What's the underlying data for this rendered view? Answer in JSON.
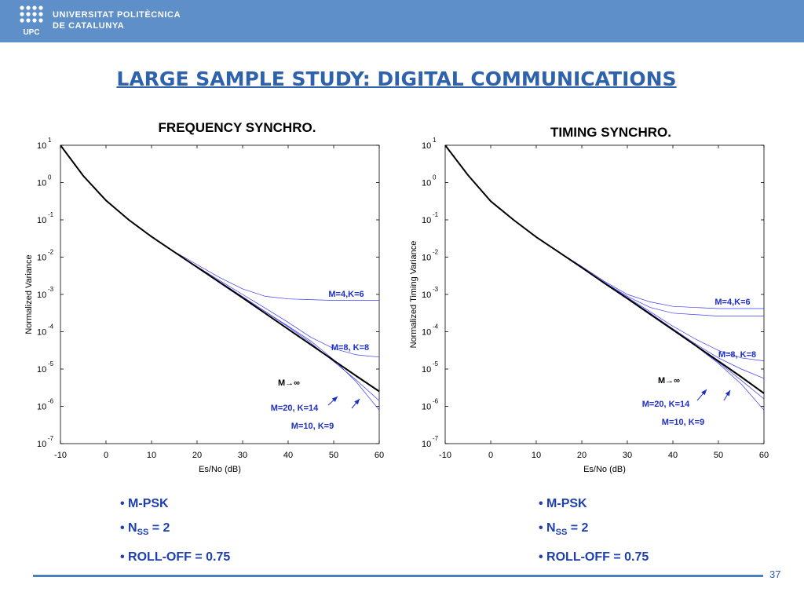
{
  "header": {
    "logo_line1": "UNIVERSITAT POLITÈCNICA",
    "logo_line2": "DE CATALUNYA",
    "logo_mark": "UPC",
    "color": "#5e8fc8"
  },
  "slide": {
    "title": "LARGE SAMPLE STUDY: DIGITAL COMMUNICATIONS",
    "page_number": "37"
  },
  "colors": {
    "title": "#2e62ad",
    "series": "#3a3af0",
    "limit_curve": "#000000",
    "annotation": "#1d2fc8"
  },
  "chart_data": [
    {
      "type": "line",
      "title": "FREQUENCY SYNCHRO.",
      "xlabel": "Es/No (dB)",
      "ylabel": "Normalized Variance",
      "xlim": [
        -10,
        60
      ],
      "ylim_exponents": [
        -7,
        1
      ],
      "yscale": "log",
      "xticks": [
        "-10",
        "0",
        "10",
        "20",
        "30",
        "40",
        "50",
        "60"
      ],
      "grid": false,
      "series": [
        {
          "name": "M=4,K=6",
          "x": [
            -10,
            -5,
            0,
            5,
            10,
            15,
            20,
            25,
            30,
            35,
            40,
            50,
            60
          ],
          "log10_y": [
            1,
            0.18,
            -0.48,
            -1.0,
            -1.45,
            -1.85,
            -2.2,
            -2.55,
            -2.85,
            -3.05,
            -3.12,
            -3.16,
            -3.16
          ]
        },
        {
          "name": "M=8, K=8",
          "x": [
            -10,
            -5,
            0,
            5,
            10,
            15,
            20,
            25,
            30,
            35,
            40,
            45,
            50,
            55,
            60
          ],
          "log10_y": [
            1,
            0.18,
            -0.48,
            -1.0,
            -1.45,
            -1.86,
            -2.25,
            -2.63,
            -3.0,
            -3.37,
            -3.75,
            -4.15,
            -4.45,
            -4.62,
            -4.68
          ]
        },
        {
          "name": "M=20, K=14",
          "x": [
            -10,
            -5,
            0,
            5,
            10,
            15,
            20,
            25,
            30,
            35,
            40,
            45,
            50,
            55,
            60
          ],
          "log10_y": [
            1,
            0.18,
            -0.48,
            -1.0,
            -1.45,
            -1.86,
            -2.26,
            -2.66,
            -3.06,
            -3.46,
            -3.85,
            -4.25,
            -4.75,
            -5.35,
            -6.1
          ]
        },
        {
          "name": "M=10, K=9",
          "x": [
            -10,
            -5,
            0,
            5,
            10,
            15,
            20,
            25,
            30,
            35,
            40,
            45,
            50,
            55,
            60
          ],
          "log10_y": [
            1,
            0.18,
            -0.48,
            -1.0,
            -1.45,
            -1.86,
            -2.26,
            -2.66,
            -3.06,
            -3.46,
            -3.87,
            -4.3,
            -4.8,
            -5.3,
            -5.85
          ]
        },
        {
          "name": "M→∞",
          "x": [
            -10,
            -5,
            0,
            5,
            10,
            15,
            20,
            25,
            30,
            35,
            40,
            45,
            50,
            55,
            60
          ],
          "log10_y": [
            1,
            0.18,
            -0.48,
            -1.0,
            -1.45,
            -1.86,
            -2.27,
            -2.68,
            -3.09,
            -3.51,
            -3.93,
            -4.35,
            -4.77,
            -5.19,
            -5.6
          ]
        }
      ],
      "annotations": [
        "M=4,K=6",
        "M=8, K=8",
        "M→∞",
        "M=20, K=14",
        "M=10, K=9"
      ],
      "bullets": [
        "• M-PSK",
        "• N",
        "SS",
        " = 2",
        "• ROLL-OFF = 0.75"
      ]
    },
    {
      "type": "line",
      "title": "TIMING SYNCHRO.",
      "xlabel": "Es/No (dB)",
      "ylabel": "Normalized Timing Variance",
      "xlim": [
        -10,
        60
      ],
      "ylim_exponents": [
        -7,
        1
      ],
      "yscale": "log",
      "xticks": [
        "-10",
        "0",
        "10",
        "20",
        "30",
        "40",
        "50",
        "60"
      ],
      "grid": false,
      "series": [
        {
          "name": "M=4,K=6 (a)",
          "x": [
            -10,
            -5,
            0,
            5,
            10,
            15,
            20,
            25,
            30,
            35,
            40,
            50,
            60
          ],
          "log10_y": [
            1,
            0.2,
            -0.5,
            -1.0,
            -1.46,
            -1.86,
            -2.25,
            -2.65,
            -3.0,
            -3.2,
            -3.32,
            -3.38,
            -3.38
          ]
        },
        {
          "name": "M=4,K=6 (b)",
          "x": [
            -10,
            -5,
            0,
            5,
            10,
            15,
            20,
            25,
            30,
            35,
            40,
            50,
            60
          ],
          "log10_y": [
            1,
            0.2,
            -0.5,
            -1.0,
            -1.46,
            -1.87,
            -2.28,
            -2.68,
            -3.05,
            -3.35,
            -3.5,
            -3.58,
            -3.58
          ]
        },
        {
          "name": "M=8, K=8 (a)",
          "x": [
            -10,
            -5,
            0,
            5,
            10,
            15,
            20,
            25,
            30,
            35,
            40,
            45,
            50,
            55,
            60
          ],
          "log10_y": [
            1,
            0.2,
            -0.5,
            -1.0,
            -1.46,
            -1.87,
            -2.28,
            -2.68,
            -3.08,
            -3.46,
            -3.85,
            -4.2,
            -4.5,
            -4.7,
            -4.78
          ]
        },
        {
          "name": "M=8, K=8 (b)",
          "x": [
            -10,
            -5,
            0,
            5,
            10,
            15,
            20,
            25,
            30,
            35,
            40,
            45,
            50,
            55,
            60
          ],
          "log10_y": [
            1,
            0.2,
            -0.5,
            -1.0,
            -1.46,
            -1.87,
            -2.28,
            -2.68,
            -3.09,
            -3.5,
            -3.92,
            -4.33,
            -4.7,
            -5.0,
            -5.25
          ]
        },
        {
          "name": "M=20, K=14",
          "x": [
            -10,
            -5,
            0,
            5,
            10,
            15,
            20,
            25,
            30,
            35,
            40,
            45,
            50,
            55,
            60
          ],
          "log10_y": [
            1,
            0.2,
            -0.5,
            -1.0,
            -1.46,
            -1.87,
            -2.28,
            -2.7,
            -3.11,
            -3.52,
            -3.95,
            -4.38,
            -4.85,
            -5.4,
            -6.1
          ]
        },
        {
          "name": "M=10, K=9",
          "x": [
            -10,
            -5,
            0,
            5,
            10,
            15,
            20,
            25,
            30,
            35,
            40,
            45,
            50,
            55,
            60
          ],
          "log10_y": [
            1,
            0.2,
            -0.5,
            -1.0,
            -1.46,
            -1.87,
            -2.28,
            -2.7,
            -3.11,
            -3.52,
            -3.95,
            -4.38,
            -4.82,
            -5.3,
            -5.8
          ]
        },
        {
          "name": "M→∞",
          "x": [
            -10,
            -5,
            0,
            5,
            10,
            15,
            20,
            25,
            30,
            35,
            40,
            45,
            50,
            55,
            60
          ],
          "log10_y": [
            1,
            0.2,
            -0.5,
            -1.0,
            -1.46,
            -1.87,
            -2.28,
            -2.7,
            -3.11,
            -3.53,
            -3.95,
            -4.37,
            -4.79,
            -5.21,
            -5.65
          ]
        }
      ],
      "annotations": [
        "M=4,K=6",
        "M=8, K=8",
        "M→∞",
        "M=20, K=14",
        "M=10, K=9"
      ],
      "bullets": [
        "• M-PSK",
        "• N",
        "SS",
        " = 2",
        "• ROLL-OFF = 0.75"
      ]
    }
  ]
}
